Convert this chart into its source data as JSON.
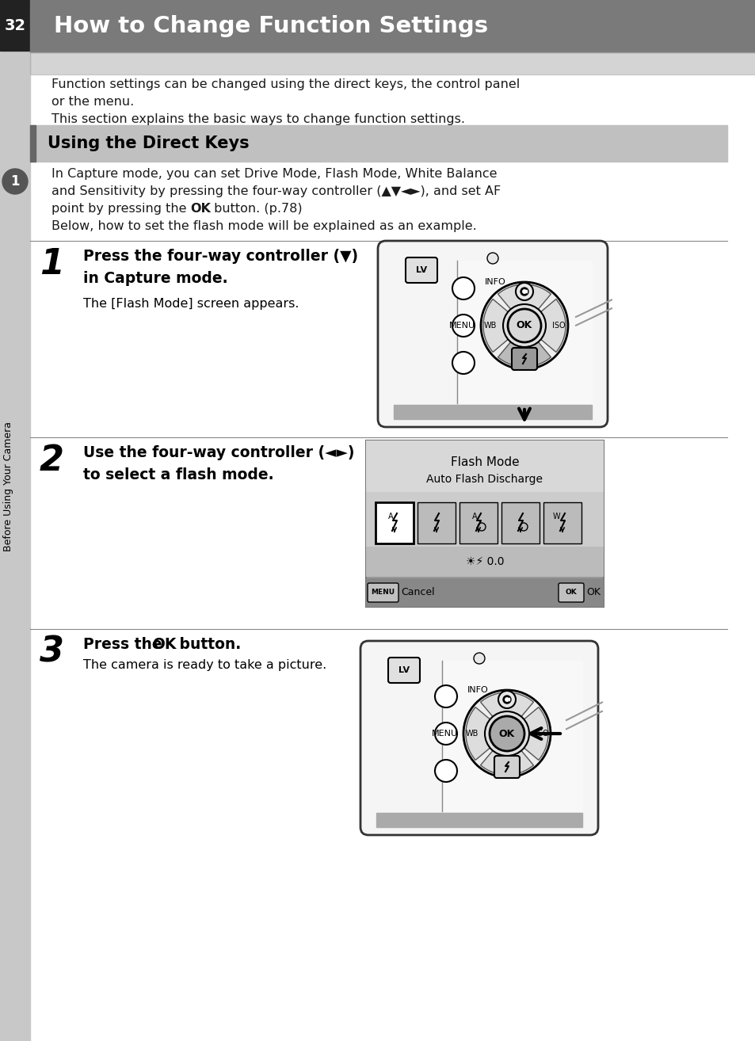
{
  "page_bg": "#ffffff",
  "header_bg": "#7a7a7a",
  "header_text": "How to Change Function Settings",
  "header_text_color": "#ffffff",
  "page_number": "32",
  "page_num_bg": "#222222",
  "page_num_color": "#ffffff",
  "left_bar_color": "#c8c8c8",
  "sidebar_text": "Before Using Your Camera",
  "circle_marker_bg": "#555555",
  "section_header_bg": "#c0c0c0",
  "section_header_accent": "#666666",
  "section_title": "Using the Direct Keys",
  "intro_line1": "Function settings can be changed using the direct keys, the control panel",
  "intro_line2": "or the menu.",
  "intro_line3": "This section explains the basic ways to change function settings.",
  "body_line1": "In Capture mode, you can set Drive Mode, Flash Mode, White Balance",
  "body_line2": "and Sensitivity by pressing the four-way controller (▲▼◄►), and set AF",
  "body_line3a": "point by pressing the ",
  "body_line3b": "OK",
  "body_line3c": " button. (p.78)",
  "body_line4": "Below, how to set the flash mode will be explained as an example.",
  "step1_title1": "Press the four-way controller (▼)",
  "step1_title2": "in Capture mode.",
  "step1_body": "The [Flash Mode] screen appears.",
  "step2_title1": "Use the four-way controller (◄►)",
  "step2_title2": "to select a flash mode.",
  "step3_title1": "Press the ",
  "step3_title2": "OK",
  "step3_title3": " button.",
  "step3_body": "The camera is ready to take a picture.",
  "flash_title": "Flash Mode",
  "flash_subtitle": "Auto Flash Discharge",
  "flash_cancel": "Cancel",
  "flash_ok": "OK",
  "divider_color": "#888888",
  "text_color": "#1a1a1a",
  "cam_bg": "#f5f5f5",
  "cam_border": "#333333",
  "dpad_outer": "#e8e8e8",
  "dpad_inner": "#d0d0d0",
  "flash_btn_color": "#aaaaaa",
  "ok_pressed_color": "#aaaaaa"
}
